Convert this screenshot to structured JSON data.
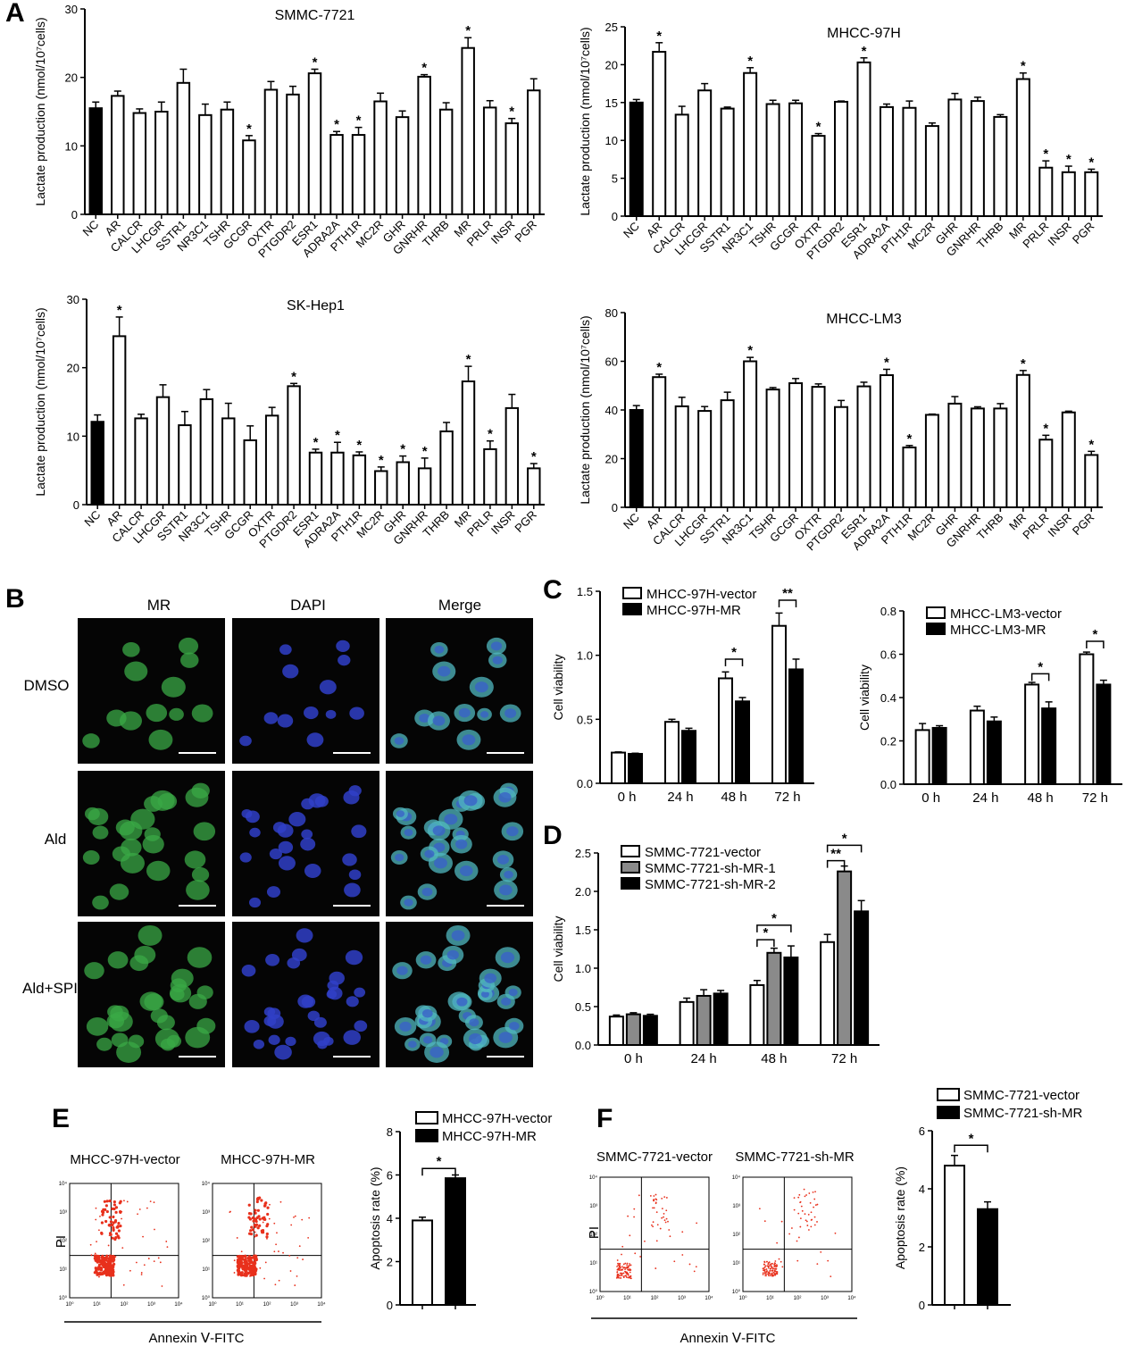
{
  "panel_labels": {
    "A": "A",
    "B": "B",
    "C": "C",
    "D": "D",
    "E": "E",
    "F": "F"
  },
  "micro": {
    "columns": [
      "MR",
      "DAPI",
      "Merge"
    ],
    "rows": [
      "DMSO",
      "Ald",
      "Ald+SPI"
    ]
  },
  "flow": {
    "E": {
      "labels": [
        "MHCC-97H-vector",
        "MHCC-97H-MR"
      ],
      "ylabel": "PI",
      "xlabel": "Annexin Ⅴ-FITC",
      "dots": "red-dots"
    },
    "F": {
      "labels": [
        "SMMC-7721-vector",
        "SMMC-7721-sh-MR"
      ],
      "ylabel": "PI",
      "xlabel": "Annexin Ⅴ-FITC",
      "dots": "red-dots"
    },
    "decade_labels": [
      "10⁰",
      "10¹",
      "10²",
      "10³",
      "10⁴"
    ]
  },
  "colors": {
    "black": "#000000",
    "white": "#ffffff",
    "gray": "#8a8a8a",
    "scatter": "#e8301c",
    "cell_green": "#3aa845",
    "cell_blue": "#3040c8",
    "merge_cyan": "#50b8c0"
  },
  "chart_data": [
    {
      "id": "A1",
      "type": "bar",
      "title": "SMMC-7721",
      "ylabel": "Lactate production (nmol/10⁷cells)",
      "ylim": [
        0,
        30
      ],
      "yticks": [
        0,
        10,
        20,
        30
      ],
      "categories": [
        "NC",
        "AR",
        "CALCR",
        "LHCGR",
        "SSTR1",
        "NR3C1",
        "TSHR",
        "GCGR",
        "OXTR",
        "PTGDR2",
        "ESR1",
        "ADRA2A",
        "PTH1R",
        "MC2R",
        "GHR",
        "GNRHR",
        "THRB",
        "MR",
        "PRLR",
        "INSR",
        "PGR"
      ],
      "values": [
        15.5,
        17.3,
        14.8,
        15.0,
        19.2,
        14.5,
        15.3,
        10.8,
        18.2,
        17.5,
        20.6,
        11.6,
        11.6,
        16.5,
        14.2,
        20.1,
        15.3,
        24.3,
        15.6,
        13.3,
        18.1
      ],
      "errors": [
        0.9,
        0.7,
        0.6,
        1.4,
        2.0,
        1.6,
        1.1,
        0.7,
        1.2,
        1.2,
        0.6,
        0.5,
        1.1,
        1.2,
        0.9,
        0.3,
        1.0,
        1.5,
        1.0,
        0.7,
        1.7
      ],
      "sig": [
        "",
        "",
        "",
        "",
        "",
        "",
        "",
        "*",
        "",
        "",
        "*",
        "*",
        "*",
        "",
        "",
        "*",
        "",
        "*",
        "",
        "*",
        ""
      ],
      "colors": [
        "black",
        "white",
        "white",
        "white",
        "white",
        "white",
        "white",
        "white",
        "white",
        "white",
        "white",
        "white",
        "white",
        "white",
        "white",
        "white",
        "white",
        "white",
        "white",
        "white",
        "white"
      ]
    },
    {
      "id": "A2",
      "type": "bar",
      "title": "MHCC-97H",
      "ylabel": "Lactate production (nmol/10⁷cells)",
      "ylim": [
        0,
        25
      ],
      "yticks": [
        0,
        5,
        10,
        15,
        20,
        25
      ],
      "categories": [
        "NC",
        "AR",
        "CALCR",
        "LHCGR",
        "SSTR1",
        "NR3C1",
        "TSHR",
        "GCGR",
        "OXTR",
        "PTGDR2",
        "ESR1",
        "ADRA2A",
        "PTH1R",
        "MC2R",
        "GHR",
        "GNRHR",
        "THRB",
        "MR",
        "PRLR",
        "INSR",
        "PGR"
      ],
      "values": [
        15.0,
        21.7,
        13.4,
        16.6,
        14.2,
        18.9,
        14.8,
        14.9,
        10.6,
        15.1,
        20.3,
        14.4,
        14.3,
        11.9,
        15.4,
        15.2,
        13.1,
        18.1,
        6.4,
        5.8,
        5.8
      ],
      "errors": [
        0.4,
        1.2,
        1.1,
        0.9,
        0.2,
        0.7,
        0.5,
        0.4,
        0.3,
        0.1,
        0.6,
        0.4,
        0.9,
        0.4,
        0.8,
        0.5,
        0.3,
        0.8,
        0.9,
        0.8,
        0.4
      ],
      "sig": [
        "",
        "*",
        "",
        "",
        "",
        "*",
        "",
        "",
        "*",
        "",
        "*",
        "",
        "",
        "",
        "",
        "",
        "",
        "*",
        "*",
        "*",
        "*"
      ],
      "colors": [
        "black",
        "white",
        "white",
        "white",
        "white",
        "white",
        "white",
        "white",
        "white",
        "white",
        "white",
        "white",
        "white",
        "white",
        "white",
        "white",
        "white",
        "white",
        "white",
        "white",
        "white"
      ]
    },
    {
      "id": "A3",
      "type": "bar",
      "title": "SK-Hep1",
      "ylabel": "Lactate production (nmol/10⁷cells)",
      "ylim": [
        0,
        30
      ],
      "yticks": [
        0,
        10,
        20,
        30
      ],
      "categories": [
        "NC",
        "AR",
        "CALCR",
        "LHCGR",
        "SSTR1",
        "NR3C1",
        "TSHR",
        "GCGR",
        "OXTR",
        "PTGDR2",
        "ESR1",
        "ADRA2A",
        "PTH1R",
        "MC2R",
        "GHR",
        "GNRHR",
        "THRB",
        "MR",
        "PRLR",
        "INSR",
        "PGR"
      ],
      "values": [
        12.1,
        24.6,
        12.6,
        15.7,
        11.6,
        15.4,
        12.6,
        9.4,
        13.0,
        17.3,
        7.6,
        7.6,
        7.2,
        4.9,
        6.2,
        5.3,
        10.7,
        18.0,
        8.1,
        14.1,
        5.3
      ],
      "errors": [
        1.0,
        2.8,
        0.6,
        1.8,
        2.0,
        1.4,
        2.2,
        2.1,
        1.2,
        0.4,
        0.5,
        1.5,
        0.5,
        0.6,
        0.9,
        1.5,
        1.3,
        2.2,
        1.2,
        2.0,
        0.7
      ],
      "sig": [
        "",
        "*",
        "",
        "",
        "",
        "",
        "",
        "",
        "",
        "*",
        "*",
        "*",
        "*",
        "*",
        "*",
        "*",
        "",
        "*",
        "*",
        "",
        "*"
      ],
      "colors": [
        "black",
        "white",
        "white",
        "white",
        "white",
        "white",
        "white",
        "white",
        "white",
        "white",
        "white",
        "white",
        "white",
        "white",
        "white",
        "white",
        "white",
        "white",
        "white",
        "white",
        "white"
      ]
    },
    {
      "id": "A4",
      "type": "bar",
      "title": "MHCC-LM3",
      "ylabel": "Lactate production (nmol/10⁷cells)",
      "ylim": [
        0,
        80
      ],
      "yticks": [
        0,
        20,
        40,
        60,
        80
      ],
      "categories": [
        "NC",
        "AR",
        "CALCR",
        "LHCGR",
        "SSTR1",
        "NR3C1",
        "TSHR",
        "GCGR",
        "OXTR",
        "PTGDR2",
        "ESR1",
        "ADRA2A",
        "PTH1R",
        "MC2R",
        "GHR",
        "GNRHR",
        "THRB",
        "MR",
        "PRLR",
        "INSR",
        "PGR"
      ],
      "values": [
        40.0,
        53.5,
        41.5,
        39.6,
        44.0,
        60.0,
        48.4,
        51.0,
        49.5,
        41.2,
        49.7,
        54.3,
        24.6,
        38.0,
        42.6,
        40.6,
        40.6,
        54.4,
        27.8,
        39.0,
        21.5
      ],
      "errors": [
        1.8,
        1.2,
        3.7,
        1.8,
        3.3,
        1.6,
        0.8,
        1.9,
        1.2,
        2.7,
        1.7,
        2.4,
        0.8,
        0.3,
        2.9,
        0.7,
        2.0,
        1.8,
        1.8,
        0.5,
        1.5
      ],
      "sig": [
        "",
        "*",
        "",
        "",
        "",
        "*",
        "",
        "",
        "",
        "",
        "",
        "*",
        "*",
        "",
        "",
        "",
        "",
        "*",
        "*",
        "",
        "*"
      ],
      "colors": [
        "black",
        "white",
        "white",
        "white",
        "white",
        "white",
        "white",
        "white",
        "white",
        "white",
        "white",
        "white",
        "white",
        "white",
        "white",
        "white",
        "white",
        "white",
        "white",
        "white",
        "white"
      ]
    },
    {
      "id": "C1",
      "type": "bar",
      "ylabel": "Cell viability",
      "ylim": [
        0,
        1.5
      ],
      "yticks": [
        0.0,
        0.5,
        1.0,
        1.5
      ],
      "categories": [
        "0 h",
        "24 h",
        "48 h",
        "72 h"
      ],
      "series": [
        {
          "name": "MHCC-97H-vector",
          "color": "white",
          "values": [
            0.24,
            0.48,
            0.82,
            1.23
          ],
          "errors": [
            0.005,
            0.02,
            0.05,
            0.1
          ]
        },
        {
          "name": "MHCC-97H-MR",
          "color": "black",
          "values": [
            0.23,
            0.41,
            0.64,
            0.89
          ],
          "errors": [
            0.005,
            0.02,
            0.03,
            0.08
          ]
        }
      ],
      "brackets": [
        {
          "cat": 2,
          "a": 0,
          "b": 1,
          "y": 0.97,
          "label": "*"
        },
        {
          "cat": 3,
          "a": 0,
          "b": 1,
          "y": 1.43,
          "label": "**"
        }
      ],
      "legend": "top-left"
    },
    {
      "id": "C2",
      "type": "bar",
      "ylabel": "Cell viability",
      "ylim": [
        0,
        0.8
      ],
      "yticks": [
        0.0,
        0.2,
        0.4,
        0.6,
        0.8
      ],
      "categories": [
        "0 h",
        "24 h",
        "48 h",
        "72 h"
      ],
      "series": [
        {
          "name": "MHCC-LM3-vector",
          "color": "white",
          "values": [
            0.25,
            0.34,
            0.46,
            0.6
          ],
          "errors": [
            0.03,
            0.02,
            0.01,
            0.01
          ]
        },
        {
          "name": "MHCC-LM3-MR",
          "color": "black",
          "values": [
            0.26,
            0.29,
            0.35,
            0.46
          ],
          "errors": [
            0.01,
            0.02,
            0.03,
            0.02
          ]
        }
      ],
      "brackets": [
        {
          "cat": 2,
          "a": 0,
          "b": 1,
          "y": 0.51,
          "label": "*"
        },
        {
          "cat": 3,
          "a": 0,
          "b": 1,
          "y": 0.66,
          "label": "*"
        }
      ],
      "legend": "top-left"
    },
    {
      "id": "D",
      "type": "bar",
      "ylabel": "Cell viability",
      "ylim": [
        0,
        2.5
      ],
      "yticks": [
        0.0,
        0.5,
        1.0,
        1.5,
        2.0,
        2.5
      ],
      "categories": [
        "0 h",
        "24 h",
        "48 h",
        "72 h"
      ],
      "series": [
        {
          "name": "SMMC-7721-vector",
          "color": "white",
          "values": [
            0.37,
            0.56,
            0.78,
            1.34
          ],
          "errors": [
            0.02,
            0.05,
            0.06,
            0.1
          ]
        },
        {
          "name": "SMMC-7721-sh-MR-1",
          "color": "gray",
          "values": [
            0.4,
            0.64,
            1.2,
            2.26
          ],
          "errors": [
            0.02,
            0.08,
            0.06,
            0.07
          ]
        },
        {
          "name": "SMMC-7721-sh-MR-2",
          "color": "black",
          "values": [
            0.38,
            0.67,
            1.14,
            1.74
          ],
          "errors": [
            0.02,
            0.04,
            0.15,
            0.14
          ]
        }
      ],
      "brackets": [
        {
          "cat": 2,
          "a": 0,
          "b": 1,
          "y": 1.37,
          "label": "*"
        },
        {
          "cat": 2,
          "a": 0,
          "b": 2,
          "y": 1.56,
          "label": "*"
        },
        {
          "cat": 3,
          "a": 0,
          "b": 1,
          "y": 2.4,
          "label": "**"
        },
        {
          "cat": 3,
          "a": 0,
          "b": 2,
          "y": 2.6,
          "label": "*"
        }
      ],
      "legend": "top-left"
    },
    {
      "id": "E",
      "type": "bar",
      "ylabel": "Apoptosis rate (%)",
      "ylim": [
        0,
        8
      ],
      "yticks": [
        0,
        2,
        4,
        6,
        8
      ],
      "series": [
        {
          "name": "MHCC-97H-vector",
          "color": "white",
          "values": [
            3.9
          ],
          "errors": [
            0.15
          ]
        },
        {
          "name": "MHCC-97H-MR",
          "color": "black",
          "values": [
            5.85
          ],
          "errors": [
            0.15
          ]
        }
      ],
      "brackets": [
        {
          "a": 0,
          "b": 1,
          "y": 6.3,
          "label": "*"
        }
      ],
      "legend": "top"
    },
    {
      "id": "F",
      "type": "bar",
      "ylabel": "Apoptosis rate (%)",
      "ylim": [
        0,
        6
      ],
      "yticks": [
        0,
        2,
        4,
        6
      ],
      "series": [
        {
          "name": "SMMC-7721-vector",
          "color": "white",
          "values": [
            4.8
          ],
          "errors": [
            0.35
          ]
        },
        {
          "name": "SMMC-7721-sh-MR",
          "color": "black",
          "values": [
            3.3
          ],
          "errors": [
            0.25
          ]
        }
      ],
      "brackets": [
        {
          "a": 0,
          "b": 1,
          "y": 5.5,
          "label": "*"
        }
      ],
      "legend": "top"
    }
  ]
}
